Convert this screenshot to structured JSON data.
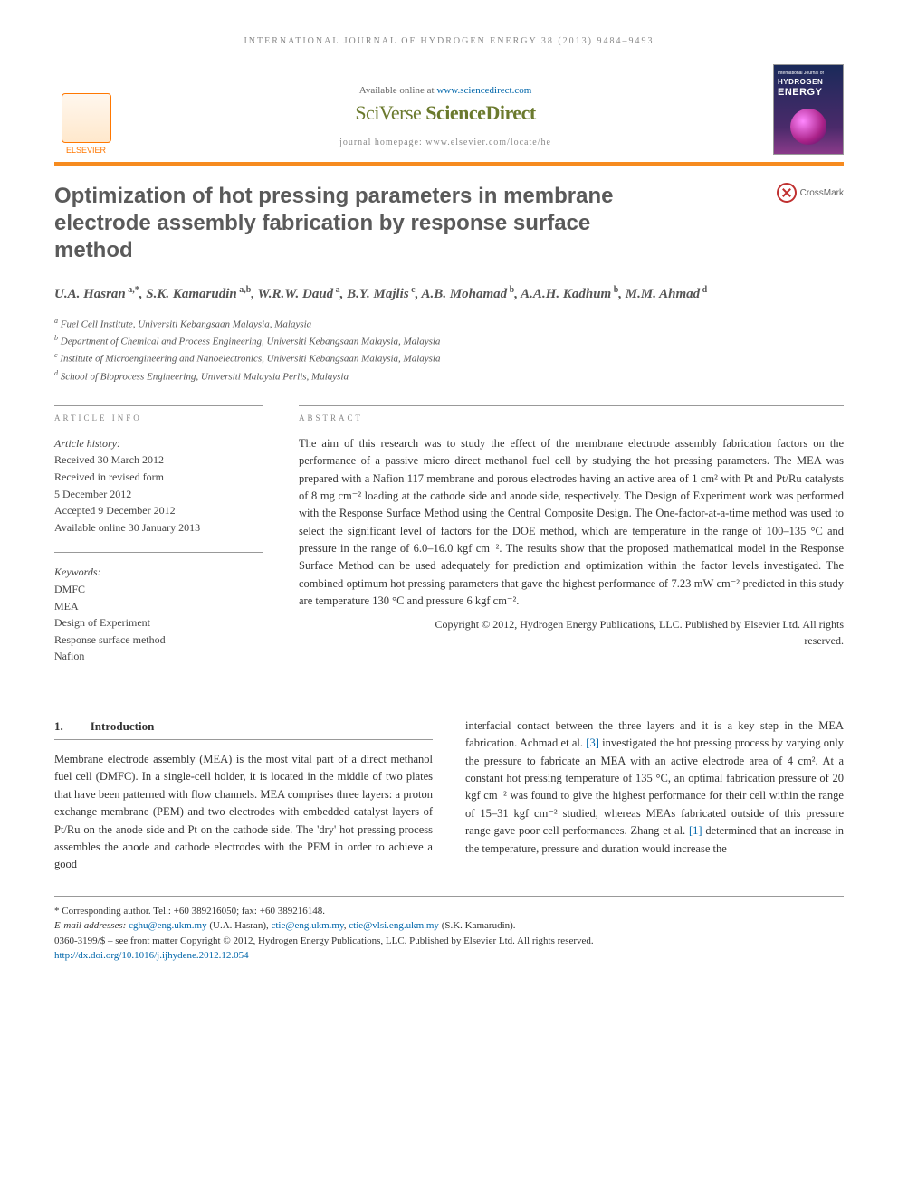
{
  "running_head": "INTERNATIONAL JOURNAL OF HYDROGEN ENERGY 38 (2013) 9484–9493",
  "masthead": {
    "available_prefix": "Available online at ",
    "available_link": "www.sciencedirect.com",
    "sd_logo_a": "SciVerse ",
    "sd_logo_b": "ScienceDirect",
    "homepage_label": "journal homepage: www.elsevier.com/locate/he",
    "elsevier": "ELSEVIER",
    "cover_line1": "International Journal of",
    "cover_line2": "HYDROGEN",
    "cover_line3": "ENERGY"
  },
  "crossmark": "CrossMark",
  "title": "Optimization of hot pressing parameters in membrane electrode assembly fabrication by response surface method",
  "authors_html": "U.A. Hasran<sup> a,*</sup>, S.K. Kamarudin<sup> a,b</sup>, W.R.W. Daud<sup> a</sup>, B.Y. Majlis<sup> c</sup>, A.B. Mohamad<sup> b</sup>, A.A.H. Kadhum<sup> b</sup>, M.M. Ahmad<sup> d</sup>",
  "affiliations": [
    {
      "sup": "a",
      "text": "Fuel Cell Institute, Universiti Kebangsaan Malaysia, Malaysia"
    },
    {
      "sup": "b",
      "text": "Department of Chemical and Process Engineering, Universiti Kebangsaan Malaysia, Malaysia"
    },
    {
      "sup": "c",
      "text": "Institute of Microengineering and Nanoelectronics, Universiti Kebangsaan Malaysia, Malaysia"
    },
    {
      "sup": "d",
      "text": "School of Bioprocess Engineering, Universiti Malaysia Perlis, Malaysia"
    }
  ],
  "info": {
    "label": "ARTICLE INFO",
    "history_head": "Article history:",
    "history": [
      "Received 30 March 2012",
      "Received in revised form",
      "5 December 2012",
      "Accepted 9 December 2012",
      "Available online 30 January 2013"
    ],
    "keywords_head": "Keywords:",
    "keywords": [
      "DMFC",
      "MEA",
      "Design of Experiment",
      "Response surface method",
      "Nafion"
    ]
  },
  "abstract": {
    "label": "ABSTRACT",
    "text": "The aim of this research was to study the effect of the membrane electrode assembly fabrication factors on the performance of a passive micro direct methanol fuel cell by studying the hot pressing parameters. The MEA was prepared with a Nafion 117 membrane and porous electrodes having an active area of 1 cm² with Pt and Pt/Ru catalysts of 8 mg cm⁻² loading at the cathode side and anode side, respectively. The Design of Experiment work was performed with the Response Surface Method using the Central Composite Design. The One-factor-at-a-time method was used to select the significant level of factors for the DOE method, which are temperature in the range of 100–135 °C and pressure in the range of 6.0–16.0 kgf cm⁻². The results show that the proposed mathematical model in the Response Surface Method can be used adequately for prediction and optimization within the factor levels investigated. The combined optimum hot pressing parameters that gave the highest performance of 7.23 mW cm⁻² predicted in this study are temperature 130 °C and pressure 6 kgf cm⁻².",
    "copyright1": "Copyright © 2012, Hydrogen Energy Publications, LLC. Published by Elsevier Ltd. All rights",
    "copyright2": "reserved."
  },
  "body": {
    "sec_num": "1.",
    "sec_title": "Introduction",
    "col1": "Membrane electrode assembly (MEA) is the most vital part of a direct methanol fuel cell (DMFC). In a single-cell holder, it is located in the middle of two plates that have been patterned with flow channels. MEA comprises three layers: a proton exchange membrane (PEM) and two electrodes with embedded catalyst layers of Pt/Ru on the anode side and Pt on the cathode side. The 'dry' hot pressing process assembles the anode and cathode electrodes with the PEM in order to achieve a good",
    "col2_a": "interfacial contact between the three layers and it is a key step in the MEA fabrication. Achmad et al. ",
    "col2_ref1": "[3]",
    "col2_b": " investigated the hot pressing process by varying only the pressure to fabricate an MEA with an active electrode area of 4 cm². At a constant hot pressing temperature of 135 °C, an optimal fabrication pressure of 20 kgf cm⁻² was found to give the highest performance for their cell within the range of 15–31 kgf cm⁻² studied, whereas MEAs fabricated outside of this pressure range gave poor cell performances. Zhang et al. ",
    "col2_ref2": "[1]",
    "col2_c": " determined that an increase in the temperature, pressure and duration would increase the"
  },
  "footnotes": {
    "corr": "* Corresponding author. Tel.: +60 389216050; fax: +60 389216148.",
    "emails_label": "E-mail addresses: ",
    "email1": "cghu@eng.ukm.my",
    "email1_who": " (U.A. Hasran), ",
    "email2": "ctie@eng.ukm.my",
    "email2_sep": ", ",
    "email3": "ctie@vlsi.eng.ukm.my",
    "email3_who": " (S.K. Kamarudin).",
    "line2": "0360-3199/$ – see front matter Copyright © 2012, Hydrogen Energy Publications, LLC. Published by Elsevier Ltd. All rights reserved.",
    "doi": "http://dx.doi.org/10.1016/j.ijhydene.2012.12.054"
  },
  "colors": {
    "accent_orange": "#f68b1f",
    "link_blue": "#0066aa",
    "sd_green": "#6b7a2e",
    "title_gray": "#5a5a5a"
  }
}
